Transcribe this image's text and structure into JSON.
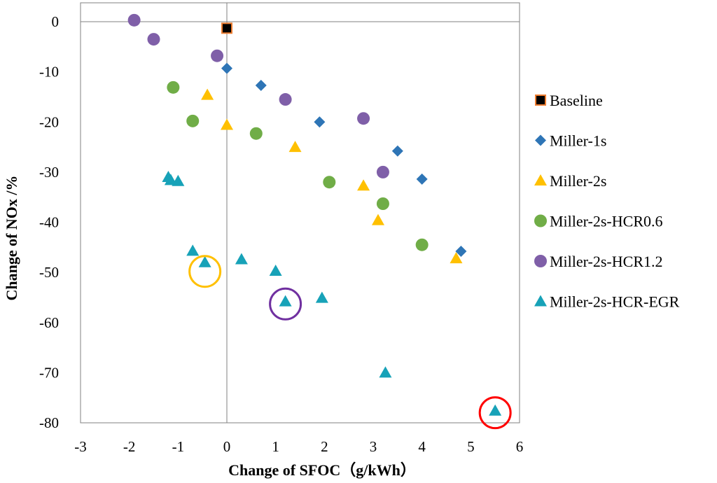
{
  "chart_data": {
    "type": "scatter",
    "xlabel": "Change of SFOC（g/kWh）",
    "ylabel": "Change of NOx /%",
    "xlim": [
      -3,
      6
    ],
    "ylim": [
      -80,
      0
    ],
    "xticks": [
      -3,
      -2,
      -1,
      0,
      1,
      2,
      3,
      4,
      5,
      6
    ],
    "yticks": [
      0,
      -10,
      -20,
      -30,
      -40,
      -50,
      -60,
      -70,
      -80
    ],
    "grid": false,
    "legend_position": "right",
    "series": [
      {
        "name": "Baseline",
        "marker": "square",
        "color": "#000000",
        "edge": "#ED7D31",
        "points": [
          [
            0,
            -1.3
          ]
        ]
      },
      {
        "name": "Miller-1s",
        "marker": "diamond",
        "color": "#2E75B6",
        "points": [
          [
            0,
            -9.3
          ],
          [
            0.7,
            -12.7
          ],
          [
            1.9,
            -20
          ],
          [
            3.5,
            -25.8
          ],
          [
            4,
            -31.4
          ],
          [
            4.8,
            -45.8
          ]
        ]
      },
      {
        "name": "Miller-2s",
        "marker": "triangle",
        "color": "#FFC000",
        "points": [
          [
            -0.4,
            -14.6
          ],
          [
            0,
            -20.6
          ],
          [
            1.4,
            -25
          ],
          [
            2.8,
            -32.7
          ],
          [
            3.1,
            -39.6
          ],
          [
            4.7,
            -47.2
          ]
        ]
      },
      {
        "name": "Miller-2s-HCR0.6",
        "marker": "circle",
        "color": "#70AD47",
        "points": [
          [
            -1.1,
            -13.1
          ],
          [
            -0.7,
            -19.8
          ],
          [
            0.6,
            -22.3
          ],
          [
            2.1,
            -32
          ],
          [
            3.2,
            -36.3
          ],
          [
            4,
            -44.5
          ]
        ]
      },
      {
        "name": "Miller-2s-HCR1.2",
        "marker": "circle",
        "color": "#7F5FA8",
        "points": [
          [
            -1.9,
            0.3
          ],
          [
            -1.5,
            -3.5
          ],
          [
            -0.2,
            -6.8
          ],
          [
            1.2,
            -15.5
          ],
          [
            2.8,
            -19.3
          ],
          [
            3.2,
            -30
          ]
        ]
      },
      {
        "name": "Miller-2s-HCR-EGR",
        "marker": "triangle",
        "color": "#17A2B8",
        "points": [
          [
            -1.2,
            -31
          ],
          [
            -1.15,
            -31.6
          ],
          [
            -1,
            -31.8
          ],
          [
            -0.7,
            -45.7
          ],
          [
            -0.45,
            -48
          ],
          [
            0.3,
            -47.4
          ],
          [
            1,
            -49.7
          ],
          [
            1.2,
            -55.8
          ],
          [
            1.95,
            -55.1
          ],
          [
            3.25,
            -70
          ],
          [
            5.5,
            -77.6
          ]
        ]
      }
    ],
    "highlights": [
      {
        "x": -0.45,
        "y": -49.8,
        "color": "#FFC000"
      },
      {
        "x": 1.2,
        "y": -56.3,
        "color": "#7030A0"
      },
      {
        "x": 5.5,
        "y": -78,
        "color": "#FF0000"
      }
    ]
  }
}
